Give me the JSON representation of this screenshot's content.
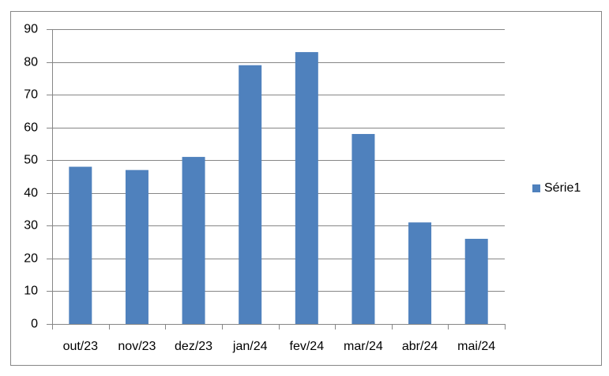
{
  "chart_data": {
    "type": "bar",
    "categories": [
      "out/23",
      "nov/23",
      "dez/23",
      "jan/24",
      "fev/24",
      "mar/24",
      "abr/24",
      "mai/24"
    ],
    "series": [
      {
        "name": "Série1",
        "color": "#4f81bd",
        "values": [
          48,
          47,
          51,
          79,
          83,
          58,
          31,
          26
        ]
      }
    ],
    "ylim": [
      0,
      90
    ],
    "yticks": [
      0,
      10,
      20,
      30,
      40,
      50,
      60,
      70,
      80,
      90
    ],
    "grid": true,
    "legend": "right"
  }
}
